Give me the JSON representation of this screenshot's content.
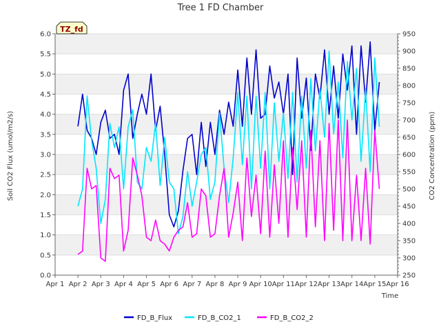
{
  "chart_data": {
    "type": "line",
    "title": "Tree 1 FD Chamber",
    "badge": "TZ_fd",
    "xlabel": "Time",
    "ylabel": "Soil CO2 Flux (umol/m2/s)",
    "y2label": "CO2 Concentration (ppm)",
    "x_tick_labels": [
      "Apr 1",
      "Apr 2",
      "Apr 3",
      "Apr 4",
      "Apr 5",
      "Apr 6",
      "Apr 7",
      "Apr 8",
      "Apr 9",
      "Apr 10",
      "Apr 11",
      "Apr 12",
      "Apr 13",
      "Apr 14",
      "Apr 15",
      "Apr 16"
    ],
    "xlim": [
      1,
      16
    ],
    "ylim": [
      0,
      6
    ],
    "y_ticks": [
      0.0,
      0.5,
      1.0,
      1.5,
      2.0,
      2.5,
      3.0,
      3.5,
      4.0,
      4.5,
      5.0,
      5.5,
      6.0
    ],
    "y_tick_labels": [
      "0.0",
      "0.5",
      "1.0",
      "1.5",
      "2.0",
      "2.5",
      "3.0",
      "3.5",
      "4.0",
      "4.5",
      "5.0",
      "5.5",
      "6.0"
    ],
    "y2lim": [
      250,
      950
    ],
    "y2_ticks": [
      250,
      300,
      350,
      400,
      450,
      500,
      550,
      600,
      650,
      700,
      750,
      800,
      850,
      900,
      950
    ],
    "y2_tick_labels": [
      "250",
      "300",
      "350",
      "400",
      "450",
      "500",
      "550",
      "600",
      "650",
      "700",
      "750",
      "800",
      "850",
      "900",
      "950"
    ],
    "background_bands": true,
    "legend_position": "bottom-center",
    "series": [
      {
        "name": "FD_B_Flux",
        "axis": "left",
        "color": "#0000cc",
        "x": [
          2.0,
          2.2,
          2.4,
          2.6,
          2.8,
          3.0,
          3.2,
          3.4,
          3.6,
          3.8,
          4.0,
          4.2,
          4.4,
          4.6,
          4.8,
          5.0,
          5.2,
          5.4,
          5.6,
          5.8,
          6.0,
          6.2,
          6.4,
          6.6,
          6.8,
          7.0,
          7.2,
          7.4,
          7.6,
          7.8,
          8.0,
          8.2,
          8.4,
          8.6,
          8.8,
          9.0,
          9.2,
          9.4,
          9.6,
          9.8,
          10.0,
          10.2,
          10.4,
          10.6,
          10.8,
          11.0,
          11.2,
          11.4,
          11.6,
          11.8,
          12.0,
          12.2,
          12.4,
          12.6,
          12.8,
          13.0,
          13.2,
          13.4,
          13.6,
          13.8,
          14.0,
          14.2,
          14.4,
          14.6,
          14.8,
          15.0,
          15.2
        ],
        "values": [
          3.7,
          4.5,
          3.6,
          3.4,
          3.0,
          3.8,
          4.1,
          3.4,
          3.5,
          3.0,
          4.6,
          5.0,
          3.4,
          4.0,
          4.5,
          4.0,
          5.0,
          3.6,
          4.2,
          3.0,
          1.5,
          1.2,
          1.6,
          2.6,
          3.4,
          3.5,
          2.5,
          3.8,
          2.7,
          3.8,
          3.0,
          4.1,
          3.5,
          4.3,
          3.7,
          5.1,
          3.7,
          5.4,
          4.0,
          5.6,
          3.9,
          4.0,
          5.2,
          4.4,
          4.8,
          4.0,
          5.0,
          2.5,
          5.4,
          3.9,
          4.9,
          3.1,
          5.0,
          4.4,
          5.6,
          4.0,
          5.2,
          3.9,
          5.5,
          4.6,
          5.7,
          3.5,
          5.7,
          4.3,
          5.8,
          3.6,
          4.8
        ]
      },
      {
        "name": "FD_B_CO2_1",
        "axis": "right",
        "color": "#00e5ff",
        "x": [
          2.0,
          2.2,
          2.4,
          2.6,
          2.8,
          3.0,
          3.2,
          3.4,
          3.6,
          3.8,
          4.0,
          4.2,
          4.4,
          4.6,
          4.8,
          5.0,
          5.2,
          5.4,
          5.6,
          5.8,
          6.0,
          6.2,
          6.4,
          6.6,
          6.8,
          7.0,
          7.2,
          7.4,
          7.6,
          7.8,
          8.0,
          8.2,
          8.4,
          8.6,
          8.8,
          9.0,
          9.2,
          9.4,
          9.6,
          9.8,
          10.0,
          10.2,
          10.4,
          10.6,
          10.8,
          11.0,
          11.2,
          11.4,
          11.6,
          11.8,
          12.0,
          12.2,
          12.4,
          12.6,
          12.8,
          13.0,
          13.2,
          13.4,
          13.6,
          13.8,
          14.0,
          14.2,
          14.4,
          14.6,
          14.8,
          15.0,
          15.2
        ],
        "values": [
          450,
          500,
          770,
          640,
          560,
          400,
          470,
          690,
          620,
          680,
          500,
          680,
          730,
          520,
          500,
          620,
          580,
          690,
          510,
          650,
          520,
          500,
          370,
          420,
          550,
          450,
          520,
          600,
          620,
          470,
          520,
          720,
          560,
          460,
          590,
          780,
          570,
          770,
          500,
          770,
          560,
          780,
          500,
          750,
          580,
          720,
          530,
          780,
          520,
          770,
          560,
          820,
          610,
          790,
          650,
          900,
          660,
          810,
          590,
          870,
          700,
          850,
          580,
          790,
          550,
          880,
          680
        ]
      },
      {
        "name": "FD_B_CO2_2",
        "axis": "right",
        "color": "#ff00ff",
        "x": [
          2.0,
          2.2,
          2.4,
          2.6,
          2.8,
          3.0,
          3.2,
          3.4,
          3.6,
          3.8,
          4.0,
          4.2,
          4.4,
          4.6,
          4.8,
          5.0,
          5.2,
          5.4,
          5.6,
          5.8,
          6.0,
          6.2,
          6.4,
          6.6,
          6.8,
          7.0,
          7.2,
          7.4,
          7.6,
          7.8,
          8.0,
          8.2,
          8.4,
          8.6,
          8.8,
          9.0,
          9.2,
          9.4,
          9.6,
          9.8,
          10.0,
          10.2,
          10.4,
          10.6,
          10.8,
          11.0,
          11.2,
          11.4,
          11.6,
          11.8,
          12.0,
          12.2,
          12.4,
          12.6,
          12.8,
          13.0,
          13.2,
          13.4,
          13.6,
          13.8,
          14.0,
          14.2,
          14.4,
          14.6,
          14.8,
          15.0,
          15.2
        ],
        "values": [
          310,
          320,
          560,
          500,
          510,
          300,
          290,
          560,
          530,
          540,
          320,
          380,
          590,
          540,
          480,
          360,
          350,
          410,
          350,
          340,
          320,
          360,
          380,
          390,
          460,
          360,
          370,
          500,
          480,
          360,
          370,
          480,
          560,
          360,
          430,
          520,
          350,
          590,
          420,
          540,
          370,
          610,
          360,
          570,
          400,
          640,
          360,
          620,
          440,
          640,
          360,
          670,
          390,
          640,
          350,
          690,
          380,
          700,
          350,
          700,
          350,
          540,
          350,
          560,
          340,
          670,
          500
        ]
      }
    ]
  }
}
